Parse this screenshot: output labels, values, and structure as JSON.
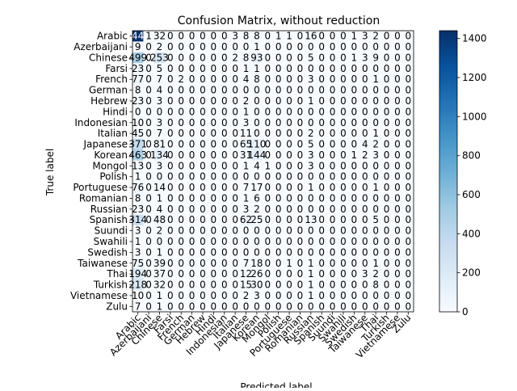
{
  "chart_data": {
    "type": "heatmap",
    "title": "Confusion Matrix, without reduction",
    "xlabel": "Predicted label",
    "ylabel": "True label",
    "labels": [
      "Arabic",
      "Azerbaijani",
      "Chinese",
      "Farsi",
      "French",
      "German",
      "Hebrew",
      "Hindi",
      "Indonesian",
      "Italian",
      "Japanese",
      "Korean",
      "Mongol",
      "Polish",
      "Portuguese",
      "Romanian",
      "Russian",
      "Spanish",
      "Suundi",
      "Swahili",
      "Swedish",
      "Taiwanese",
      "Thai",
      "Turkish",
      "Vietnamese",
      "Zulu"
    ],
    "colorbar": {
      "min": 0,
      "max": 1440,
      "ticks": [
        0,
        200,
        400,
        600,
        800,
        1000,
        1200,
        1400
      ]
    },
    "matrix": [
      [
        1440,
        1,
        32,
        0,
        0,
        0,
        0,
        0,
        0,
        3,
        8,
        8,
        0,
        1,
        1,
        0,
        16,
        0,
        0,
        0,
        1,
        3,
        2,
        0,
        0,
        0
      ],
      [
        9,
        0,
        2,
        0,
        0,
        0,
        0,
        0,
        0,
        0,
        0,
        1,
        0,
        0,
        0,
        0,
        0,
        0,
        0,
        0,
        0,
        0,
        0,
        0,
        0,
        0
      ],
      [
        499,
        0,
        253,
        0,
        0,
        0,
        0,
        0,
        0,
        2,
        8,
        93,
        0,
        0,
        0,
        0,
        5,
        0,
        0,
        0,
        1,
        3,
        9,
        0,
        0,
        0
      ],
      [
        23,
        0,
        5,
        0,
        0,
        0,
        0,
        0,
        0,
        0,
        1,
        1,
        0,
        0,
        0,
        0,
        0,
        0,
        0,
        0,
        0,
        0,
        0,
        0,
        0,
        0
      ],
      [
        77,
        0,
        7,
        0,
        2,
        0,
        0,
        0,
        0,
        0,
        4,
        8,
        0,
        0,
        0,
        0,
        3,
        0,
        0,
        0,
        0,
        0,
        1,
        0,
        0,
        0
      ],
      [
        8,
        0,
        4,
        0,
        0,
        0,
        0,
        0,
        0,
        0,
        0,
        0,
        0,
        0,
        0,
        0,
        0,
        0,
        0,
        0,
        0,
        0,
        0,
        0,
        0,
        0
      ],
      [
        23,
        0,
        3,
        0,
        0,
        0,
        0,
        0,
        0,
        0,
        2,
        0,
        0,
        0,
        0,
        0,
        1,
        0,
        0,
        0,
        0,
        0,
        0,
        0,
        0,
        0
      ],
      [
        0,
        0,
        0,
        0,
        0,
        0,
        0,
        0,
        0,
        0,
        1,
        0,
        0,
        0,
        0,
        0,
        0,
        0,
        0,
        0,
        0,
        0,
        0,
        0,
        0,
        0
      ],
      [
        10,
        0,
        3,
        0,
        0,
        0,
        0,
        0,
        0,
        0,
        3,
        0,
        0,
        0,
        0,
        0,
        0,
        0,
        0,
        0,
        0,
        0,
        0,
        0,
        0,
        0
      ],
      [
        45,
        0,
        7,
        0,
        0,
        0,
        0,
        0,
        0,
        0,
        11,
        0,
        0,
        0,
        0,
        0,
        2,
        0,
        0,
        0,
        0,
        0,
        1,
        0,
        0,
        0
      ],
      [
        371,
        0,
        81,
        0,
        0,
        0,
        0,
        0,
        0,
        0,
        65,
        110,
        0,
        0,
        0,
        0,
        5,
        0,
        0,
        0,
        0,
        4,
        2,
        0,
        0,
        0
      ],
      [
        463,
        0,
        134,
        0,
        0,
        0,
        0,
        0,
        0,
        0,
        31,
        144,
        0,
        0,
        0,
        0,
        3,
        0,
        0,
        0,
        1,
        2,
        3,
        0,
        0,
        0
      ],
      [
        13,
        0,
        3,
        0,
        0,
        0,
        0,
        0,
        0,
        0,
        1,
        4,
        1,
        0,
        0,
        0,
        3,
        0,
        0,
        0,
        0,
        0,
        0,
        0,
        0,
        0
      ],
      [
        1,
        0,
        0,
        0,
        0,
        0,
        0,
        0,
        0,
        0,
        0,
        0,
        0,
        0,
        0,
        0,
        0,
        0,
        0,
        0,
        0,
        0,
        0,
        0,
        0,
        0
      ],
      [
        76,
        0,
        14,
        0,
        0,
        0,
        0,
        0,
        0,
        0,
        7,
        17,
        0,
        0,
        0,
        0,
        1,
        0,
        0,
        0,
        0,
        0,
        1,
        0,
        0,
        0
      ],
      [
        8,
        0,
        1,
        0,
        0,
        0,
        0,
        0,
        0,
        0,
        1,
        6,
        0,
        0,
        0,
        0,
        0,
        0,
        0,
        0,
        0,
        0,
        0,
        0,
        0,
        0
      ],
      [
        23,
        0,
        4,
        0,
        0,
        0,
        0,
        0,
        0,
        0,
        3,
        2,
        0,
        0,
        0,
        0,
        0,
        0,
        0,
        0,
        0,
        0,
        0,
        0,
        0,
        0
      ],
      [
        314,
        0,
        48,
        0,
        0,
        0,
        0,
        0,
        0,
        0,
        62,
        25,
        0,
        0,
        0,
        0,
        13,
        0,
        0,
        0,
        0,
        0,
        5,
        0,
        0,
        0
      ],
      [
        3,
        0,
        2,
        0,
        0,
        0,
        0,
        0,
        0,
        0,
        0,
        0,
        0,
        0,
        0,
        0,
        0,
        0,
        0,
        0,
        0,
        0,
        0,
        0,
        0,
        0
      ],
      [
        1,
        0,
        0,
        0,
        0,
        0,
        0,
        0,
        0,
        0,
        0,
        0,
        0,
        0,
        0,
        0,
        0,
        0,
        0,
        0,
        0,
        0,
        0,
        0,
        0,
        0
      ],
      [
        3,
        0,
        1,
        0,
        0,
        0,
        0,
        0,
        0,
        0,
        0,
        0,
        0,
        0,
        0,
        0,
        0,
        0,
        0,
        0,
        0,
        0,
        0,
        0,
        0,
        0
      ],
      [
        75,
        0,
        39,
        0,
        0,
        0,
        0,
        0,
        0,
        0,
        7,
        18,
        0,
        0,
        1,
        0,
        1,
        0,
        0,
        0,
        0,
        0,
        1,
        0,
        0,
        0
      ],
      [
        194,
        0,
        37,
        0,
        0,
        0,
        0,
        0,
        0,
        0,
        12,
        26,
        0,
        0,
        0,
        0,
        1,
        0,
        0,
        0,
        0,
        3,
        2,
        0,
        0,
        0
      ],
      [
        218,
        0,
        32,
        0,
        0,
        0,
        0,
        0,
        0,
        0,
        15,
        30,
        0,
        0,
        0,
        0,
        1,
        0,
        0,
        0,
        0,
        0,
        8,
        0,
        0,
        0
      ],
      [
        10,
        0,
        1,
        0,
        0,
        0,
        0,
        0,
        0,
        0,
        2,
        3,
        0,
        0,
        0,
        0,
        1,
        0,
        0,
        0,
        0,
        0,
        0,
        0,
        0,
        0
      ],
      [
        7,
        0,
        1,
        0,
        0,
        0,
        0,
        0,
        0,
        0,
        0,
        0,
        0,
        0,
        0,
        0,
        0,
        0,
        0,
        0,
        0,
        0,
        0,
        0,
        0,
        0
      ]
    ]
  }
}
